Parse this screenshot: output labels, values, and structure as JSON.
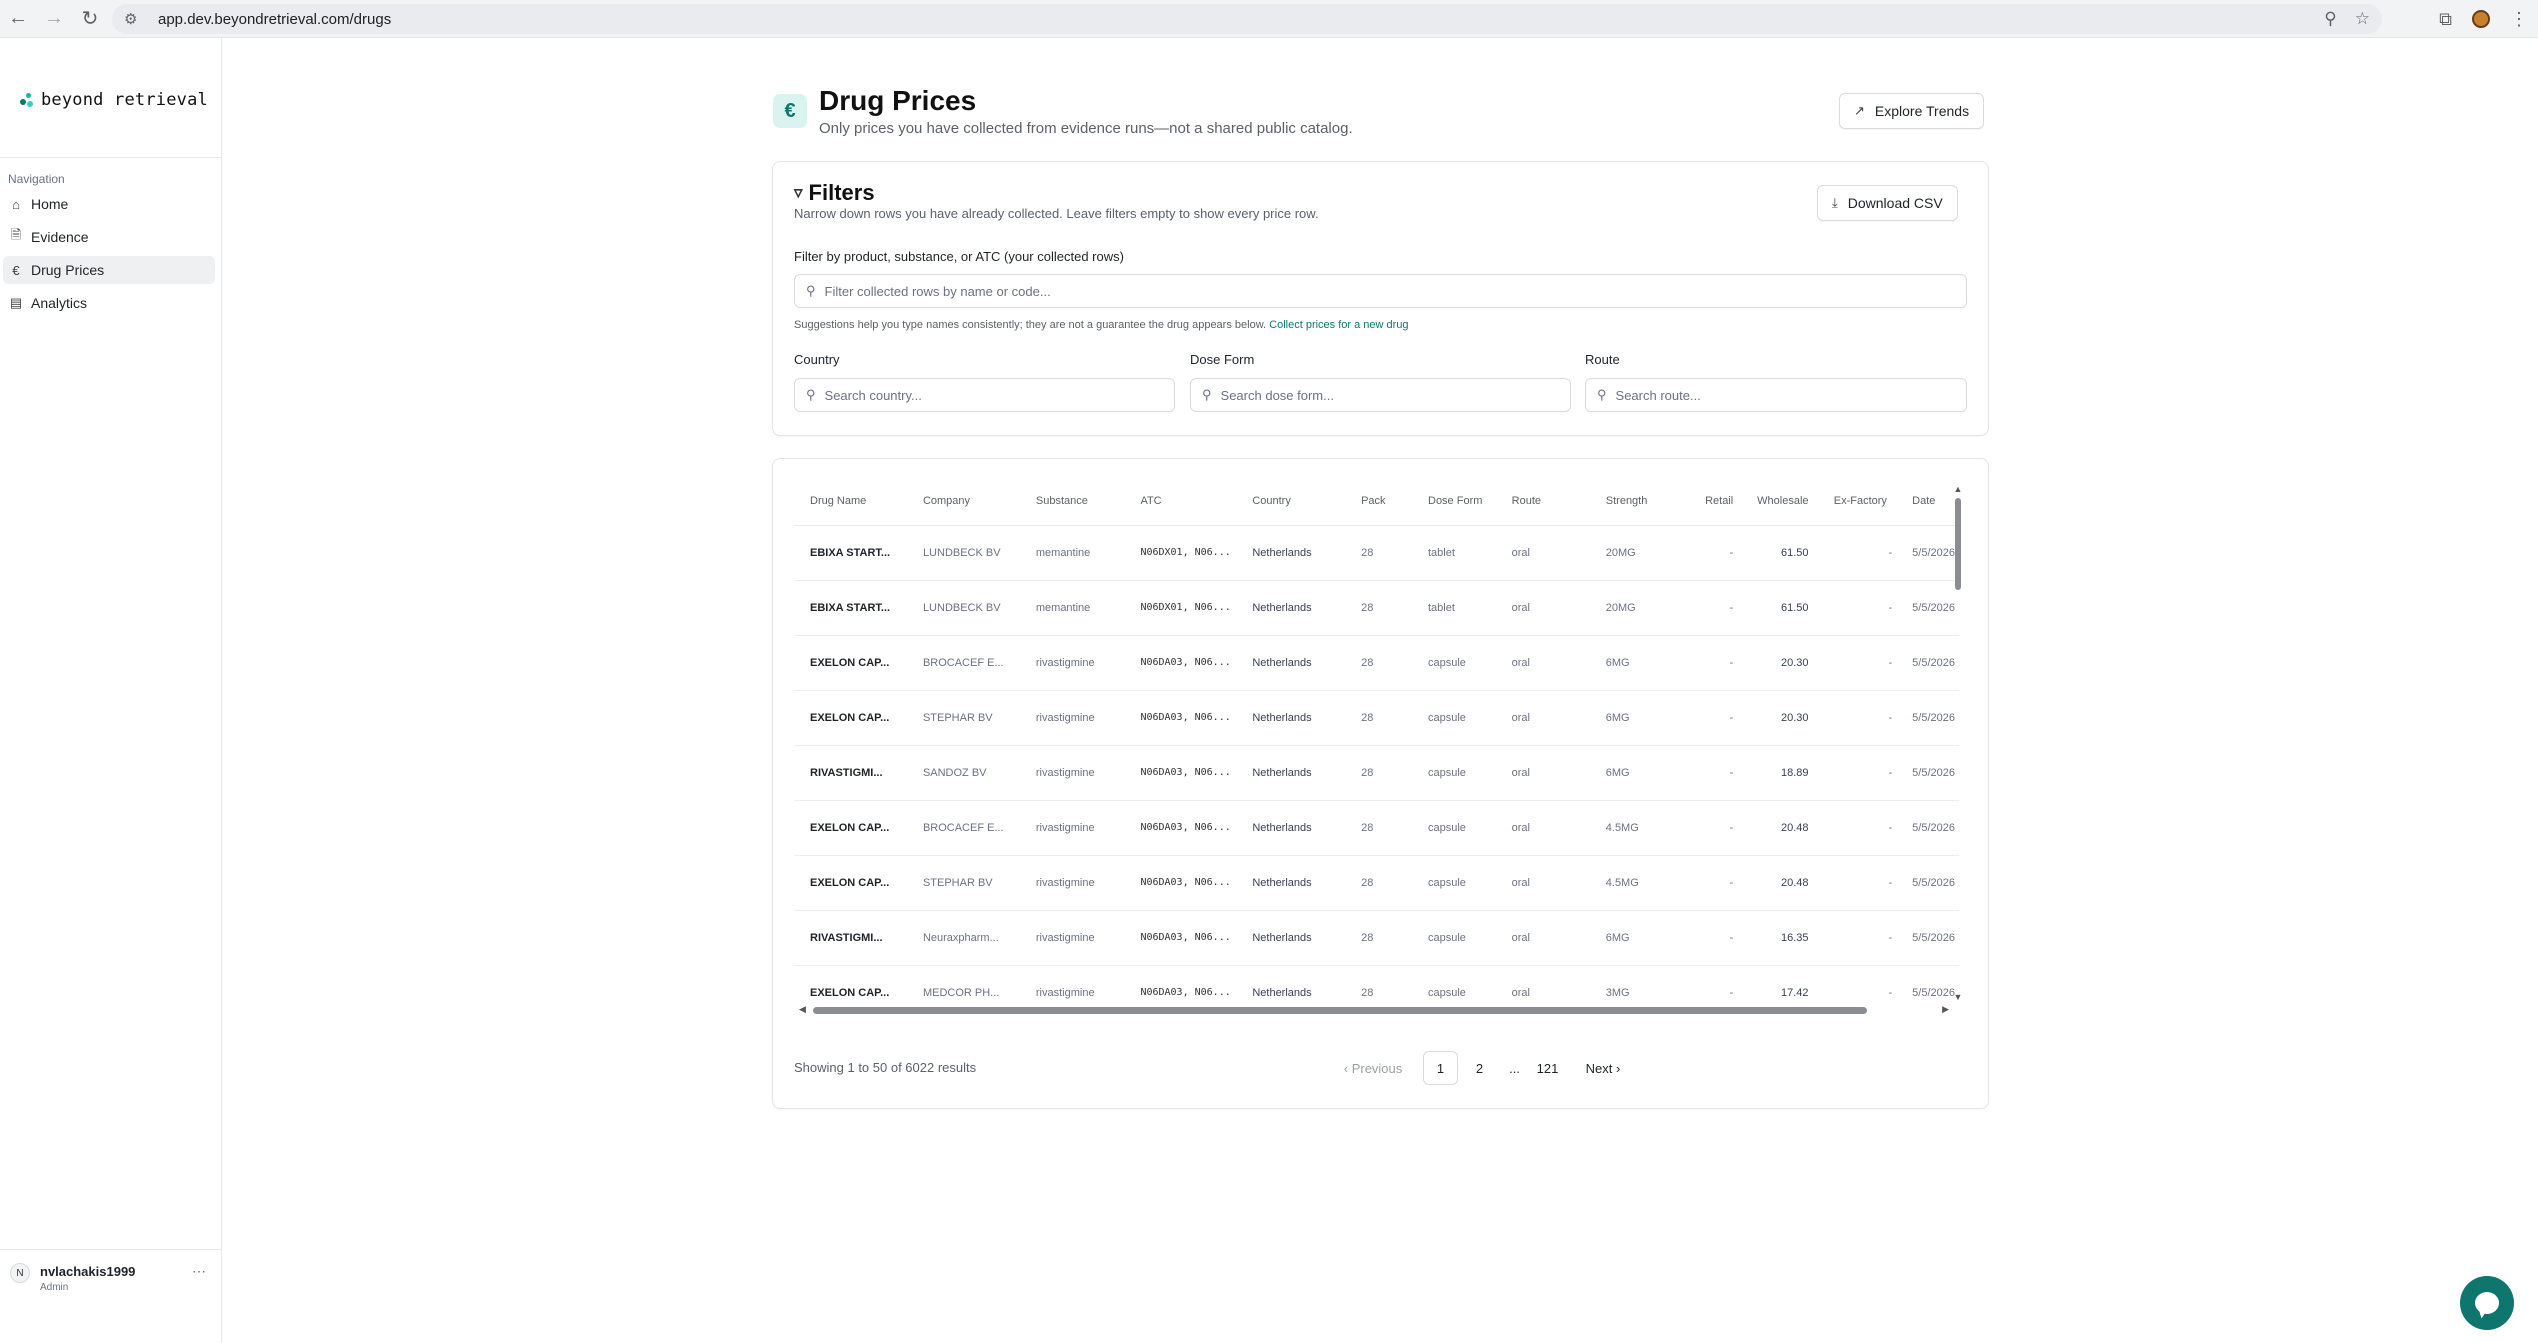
{
  "browser": {
    "url": "app.dev.beyondretrieval.com/drugs"
  },
  "sidebar": {
    "brand": "beyond retrieval",
    "nav_label": "Navigation",
    "items": [
      {
        "label": "Home",
        "icon": "home-icon"
      },
      {
        "label": "Evidence",
        "icon": "document-icon"
      },
      {
        "label": "Drug Prices",
        "icon": "euro-icon",
        "active": true
      },
      {
        "label": "Analytics",
        "icon": "bar-chart-icon"
      }
    ],
    "user": {
      "initial": "N",
      "name": "nvlachakis1999",
      "role": "Admin"
    }
  },
  "header": {
    "title": "Drug Prices",
    "subtitle": "Only prices you have collected from evidence runs—not a shared public catalog.",
    "explore_label": "Explore Trends"
  },
  "filters": {
    "title": "Filters",
    "subtitle": "Narrow down rows you have already collected. Leave filters empty to show every price row.",
    "download_label": "Download CSV",
    "main_label": "Filter by product, substance, or ATC (your collected rows)",
    "main_placeholder": "Filter collected rows by name or code...",
    "hint": "Suggestions help you type names consistently; they are not a guarantee the drug appears below.",
    "hint_link": "Collect prices for a new drug",
    "country_label": "Country",
    "country_placeholder": "Search country...",
    "doseform_label": "Dose Form",
    "doseform_placeholder": "Search dose form...",
    "route_label": "Route",
    "route_placeholder": "Search route..."
  },
  "table": {
    "columns": [
      "Drug Name",
      "Company",
      "Substance",
      "ATC",
      "Country",
      "Pack",
      "Dose Form",
      "Route",
      "Strength",
      "Retail",
      "Wholesale",
      "Ex-Factory",
      "Date"
    ],
    "rows": [
      [
        "EBIXA START...",
        "LUNDBECK BV",
        "memantine",
        "N06DX01, N06...",
        "Netherlands",
        "28",
        "tablet",
        "oral",
        "20MG",
        "-",
        "61.50",
        "-",
        "5/5/2026"
      ],
      [
        "EBIXA START...",
        "LUNDBECK BV",
        "memantine",
        "N06DX01, N06...",
        "Netherlands",
        "28",
        "tablet",
        "oral",
        "20MG",
        "-",
        "61.50",
        "-",
        "5/5/2026"
      ],
      [
        "EXELON CAP...",
        "BROCACEF E...",
        "rivastigmine",
        "N06DA03, N06...",
        "Netherlands",
        "28",
        "capsule",
        "oral",
        "6MG",
        "-",
        "20.30",
        "-",
        "5/5/2026"
      ],
      [
        "EXELON CAP...",
        "STEPHAR BV",
        "rivastigmine",
        "N06DA03, N06...",
        "Netherlands",
        "28",
        "capsule",
        "oral",
        "6MG",
        "-",
        "20.30",
        "-",
        "5/5/2026"
      ],
      [
        "RIVASTIGMI...",
        "SANDOZ BV",
        "rivastigmine",
        "N06DA03, N06...",
        "Netherlands",
        "28",
        "capsule",
        "oral",
        "6MG",
        "-",
        "18.89",
        "-",
        "5/5/2026"
      ],
      [
        "EXELON CAP...",
        "BROCACEF E...",
        "rivastigmine",
        "N06DA03, N06...",
        "Netherlands",
        "28",
        "capsule",
        "oral",
        "4.5MG",
        "-",
        "20.48",
        "-",
        "5/5/2026"
      ],
      [
        "EXELON CAP...",
        "STEPHAR BV",
        "rivastigmine",
        "N06DA03, N06...",
        "Netherlands",
        "28",
        "capsule",
        "oral",
        "4.5MG",
        "-",
        "20.48",
        "-",
        "5/5/2026"
      ],
      [
        "RIVASTIGMI...",
        "Neuraxpharm...",
        "rivastigmine",
        "N06DA03, N06...",
        "Netherlands",
        "28",
        "capsule",
        "oral",
        "6MG",
        "-",
        "16.35",
        "-",
        "5/5/2026"
      ],
      [
        "EXELON CAP...",
        "MEDCOR PH...",
        "rivastigmine",
        "N06DA03, N06...",
        "Netherlands",
        "28",
        "capsule",
        "oral",
        "3MG",
        "-",
        "17.42",
        "-",
        "5/5/2026"
      ]
    ]
  },
  "pagination": {
    "summary": "Showing 1 to 50 of 6022 results",
    "previous": "Previous",
    "pages": [
      "1",
      "2",
      "...",
      "121"
    ],
    "current": "1",
    "next": "Next"
  },
  "colors": {
    "accent": "#0f766e",
    "accent_light": "#d9f3ef",
    "active_nav_bg": "#eef0f2"
  }
}
